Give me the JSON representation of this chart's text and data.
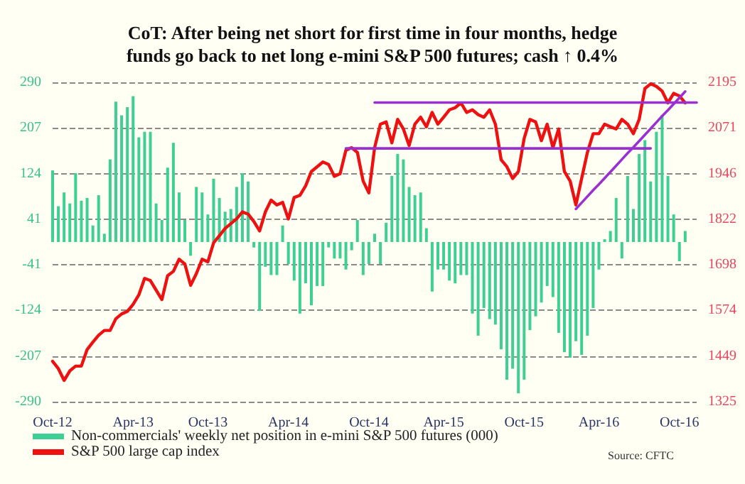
{
  "chart_data": {
    "type": "bar",
    "title": "CoT: After being net short for first time in four months, hedge\nfunds go back to net long e-mini S&P 500 futures; cash ↑ 0.4%",
    "categories": [
      "Oct-12",
      null,
      null,
      null,
      null,
      null,
      null,
      null,
      null,
      null,
      null,
      null,
      null,
      null,
      "Apr-13",
      null,
      null,
      null,
      null,
      null,
      null,
      null,
      null,
      null,
      null,
      null,
      null,
      "Oct-13",
      null,
      null,
      null,
      null,
      null,
      null,
      null,
      null,
      null,
      null,
      null,
      null,
      null,
      "Apr-14",
      null,
      null,
      null,
      null,
      null,
      null,
      null,
      null,
      null,
      null,
      null,
      null,
      null,
      "Oct-14",
      null,
      null,
      null,
      null,
      null,
      null,
      null,
      null,
      null,
      null,
      null,
      null,
      "Apr-15",
      null,
      null,
      null,
      null,
      null,
      null,
      null,
      null,
      null,
      null,
      null,
      null,
      null,
      "Oct-15",
      null,
      null,
      null,
      null,
      null,
      null,
      null,
      null,
      null,
      null,
      null,
      null,
      "Apr-16",
      null,
      null,
      null,
      null,
      null,
      null,
      null,
      null,
      null,
      null,
      null,
      null,
      null,
      "Oct-16",
      null,
      null,
      null
    ],
    "series": [
      {
        "name": "Non-commercials' weekly net position in e-mini S&P 500 futures (000)",
        "color": "#3ecf94",
        "values": [
          130,
          65,
          90,
          70,
          125,
          75,
          80,
          30,
          85,
          15,
          150,
          255,
          230,
          245,
          265,
          190,
          200,
          200,
          70,
          40,
          135,
          180,
          90,
          40,
          -25,
          100,
          90,
          50,
          115,
          80,
          55,
          60,
          100,
          125,
          110,
          -10,
          -125,
          -45,
          -60,
          -60,
          30,
          -40,
          -70,
          -130,
          -75,
          -115,
          -80,
          -80,
          -10,
          -30,
          -30,
          -50,
          -15,
          40,
          -60,
          -40,
          15,
          -40,
          35,
          120,
          160,
          150,
          100,
          85,
          90,
          25,
          -90,
          -50,
          -50,
          -70,
          -75,
          -60,
          -60,
          -130,
          -170,
          -120,
          -140,
          -150,
          -195,
          -250,
          -230,
          -275,
          -250,
          -160,
          -135,
          -110,
          -80,
          -100,
          -165,
          -200,
          -210,
          -180,
          -205,
          -170,
          -120,
          -50,
          5,
          20,
          80,
          -30,
          120,
          60,
          160,
          185,
          110,
          200,
          230,
          120,
          50,
          -35,
          20,
          null,
          null
        ]
      },
      {
        "name": "S&P 500 large cap index",
        "type": "line",
        "axis": "y2",
        "color": "#ee1111",
        "values": [
          1435,
          1415,
          1383,
          1409,
          1422,
          1422,
          1467,
          1487,
          1506,
          1519,
          1519,
          1551,
          1564,
          1571,
          1590,
          1616,
          1661,
          1655,
          1629,
          1603,
          1668,
          1680,
          1713,
          1700,
          1642,
          1674,
          1713,
          1706,
          1758,
          1777,
          1797,
          1810,
          1823,
          1842,
          1836,
          1816,
          1790,
          1842,
          1874,
          1861,
          1868,
          1823,
          1881,
          1887,
          1913,
          1952,
          1965,
          1978,
          1971,
          1939,
          1946,
          2010,
          2017,
          2004,
          1926,
          1894,
          2017,
          2081,
          2087,
          2030,
          2094,
          2068,
          2023,
          2081,
          2100,
          2074,
          2113,
          2081,
          2100,
          2120,
          2126,
          2139,
          2113,
          2120,
          2107,
          2100,
          2120,
          2081,
          1984,
          1965,
          1933,
          1952,
          2042,
          2094,
          2087,
          2036,
          2081,
          2017,
          2068,
          1952,
          1926,
          1861,
          1933,
          2004,
          2055,
          2055,
          2081,
          2074,
          2068,
          2094,
          2081,
          2055,
          2094,
          2178,
          2191,
          2184,
          2171,
          2139,
          2165,
          2158,
          2139,
          null,
          null
        ]
      },
      {
        "type": "line",
        "axis": "y2",
        "color": "#9b30d0",
        "values": [
          null,
          null,
          null,
          null,
          null,
          null,
          null,
          null,
          null,
          null,
          null,
          null,
          null,
          null,
          null,
          null,
          null,
          null,
          null,
          null,
          null,
          null,
          null,
          null,
          null,
          null,
          null,
          null,
          null,
          null,
          null,
          null,
          null,
          null,
          null,
          null,
          null,
          null,
          null,
          null,
          null,
          null,
          null,
          null,
          null,
          null,
          null,
          null,
          null,
          null,
          null,
          2015,
          2015,
          2015,
          2015,
          2015,
          2015,
          2015,
          2015,
          2015,
          2015,
          2015,
          2015,
          2015,
          2015,
          2015,
          2015,
          2015,
          2015,
          2015,
          2015,
          2015,
          2015,
          2015,
          2015,
          2015,
          2015,
          2015,
          2015,
          2015,
          2015,
          2015,
          2015,
          2015,
          2015,
          2015,
          2015,
          2015,
          2015,
          2015,
          2015,
          2015,
          2015,
          2015,
          2015,
          2015,
          2015,
          2015,
          2015,
          2015,
          2015,
          2015,
          2015,
          2015,
          2015,
          null,
          null,
          null,
          null,
          null,
          null,
          null,
          null
        ]
      },
      {
        "type": "line",
        "axis": "y2",
        "color": "#9b30d0",
        "values": [
          null,
          null,
          null,
          null,
          null,
          null,
          null,
          null,
          null,
          null,
          null,
          null,
          null,
          null,
          null,
          null,
          null,
          null,
          null,
          null,
          null,
          null,
          null,
          null,
          null,
          null,
          null,
          null,
          null,
          null,
          null,
          null,
          null,
          null,
          null,
          null,
          null,
          null,
          null,
          null,
          null,
          null,
          null,
          null,
          null,
          null,
          null,
          null,
          null,
          null,
          null,
          null,
          null,
          null,
          null,
          null,
          2140,
          2140,
          2140,
          2140,
          2140,
          2140,
          2140,
          2140,
          2140,
          2140,
          2140,
          2140,
          2140,
          2140,
          2140,
          2140,
          2140,
          2140,
          2140,
          2140,
          2140,
          2140,
          2140,
          2140,
          2140,
          2140,
          2140,
          2140,
          2140,
          2140,
          2140,
          2140,
          2140,
          2140,
          2140,
          2140,
          2140,
          2140,
          2140,
          2140,
          2140,
          2140,
          2140,
          2140,
          2140,
          2140,
          2140,
          2140,
          2140,
          2140,
          2140,
          2140,
          2140,
          2140,
          2140,
          2140,
          2140
        ]
      },
      {
        "type": "line",
        "axis": "y2",
        "color": "#9b30d0",
        "values": [
          null,
          null,
          null,
          null,
          null,
          null,
          null,
          null,
          null,
          null,
          null,
          null,
          null,
          null,
          null,
          null,
          null,
          null,
          null,
          null,
          null,
          null,
          null,
          null,
          null,
          null,
          null,
          null,
          null,
          null,
          null,
          null,
          null,
          null,
          null,
          null,
          null,
          null,
          null,
          null,
          null,
          null,
          null,
          null,
          null,
          null,
          null,
          null,
          null,
          null,
          null,
          null,
          null,
          null,
          null,
          null,
          null,
          null,
          null,
          null,
          null,
          null,
          null,
          null,
          null,
          null,
          null,
          null,
          null,
          null,
          null,
          null,
          null,
          null,
          null,
          null,
          null,
          null,
          null,
          null,
          null,
          null,
          null,
          null,
          null,
          null,
          null,
          null,
          null,
          null,
          null,
          1850,
          1867,
          1884,
          1901,
          1917,
          1934,
          1951,
          1968,
          1985,
          2002,
          2018,
          2035,
          2052,
          2069,
          2086,
          2103,
          2119,
          2136,
          2153,
          2170,
          null,
          null
        ]
      }
    ],
    "ylim": [
      -290,
      290
    ],
    "yticks": [
      -290,
      -207,
      -124,
      -41,
      41,
      124,
      207,
      290
    ],
    "y2lim": [
      1325,
      2195
    ],
    "y2ticks": [
      1325,
      1449,
      1574,
      1698,
      1822,
      1946,
      2071,
      2195
    ],
    "grid": "y",
    "legend": "bottom left",
    "marker": "none",
    "line_style": "solid",
    "annotations": [
      "Source: CFTC"
    ]
  }
}
